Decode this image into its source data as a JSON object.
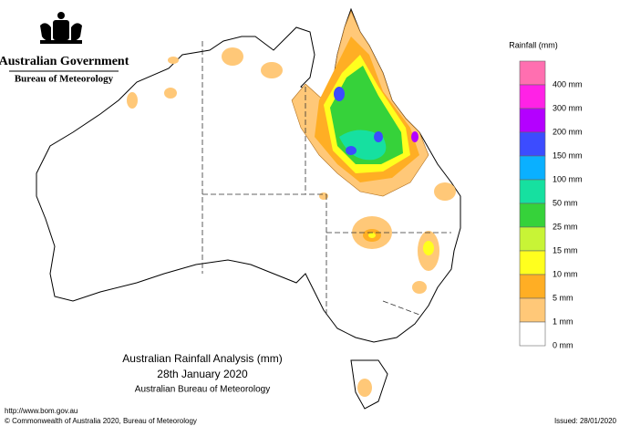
{
  "header": {
    "organisation": "Australian Government",
    "agency": "Bureau of Meteorology"
  },
  "map": {
    "title": "Australian Rainfall Analysis (mm)",
    "date": "28th January 2020",
    "credit": "Australian Bureau of Meteorology"
  },
  "legend": {
    "title": "Rainfall (mm)",
    "items": [
      {
        "label": "400 mm",
        "color": "#ff6fb0"
      },
      {
        "label": "300 mm",
        "color": "#ff22e6"
      },
      {
        "label": "200 mm",
        "color": "#b400ff"
      },
      {
        "label": "150 mm",
        "color": "#3c4cff"
      },
      {
        "label": "100 mm",
        "color": "#0ab0ff"
      },
      {
        "label": "50 mm",
        "color": "#16e0a0"
      },
      {
        "label": "25 mm",
        "color": "#36d23a"
      },
      {
        "label": "15 mm",
        "color": "#c8f436"
      },
      {
        "label": "10 mm",
        "color": "#ffff1e"
      },
      {
        "label": "5 mm",
        "color": "#ffae24"
      },
      {
        "label": "1 mm",
        "color": "#ffc878"
      },
      {
        "label": "0 mm",
        "color": "#ffffff"
      }
    ]
  },
  "footer": {
    "url": "http://www.bom.gov.au",
    "copyright": "© Commonwealth of Australia 2020, Bureau of Meteorology",
    "issued": "Issued: 28/01/2020"
  }
}
